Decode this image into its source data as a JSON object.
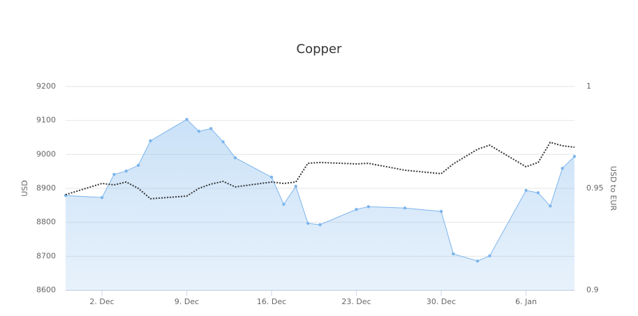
{
  "chart_data": {
    "type": "line",
    "title": "Copper",
    "y_label": "USD",
    "y2_label": "USD to EUR",
    "x": [
      "--11-29",
      "--12-02",
      "--12-03",
      "--12-04",
      "--12-05",
      "--12-06",
      "--12-09",
      "--12-10",
      "--12-11",
      "--12-12",
      "--12-13",
      "--12-16",
      "--12-17",
      "--12-18",
      "--12-19",
      "--12-20",
      "--12-23",
      "--12-24",
      "--12-27",
      "--12-30",
      "--12-31",
      "--01-02",
      "--01-03",
      "--01-06",
      "--01-07",
      "--01-08",
      "--01-09",
      "--01-10"
    ],
    "xlim": [
      "--11-29",
      "--01-10"
    ],
    "xticks": [
      {
        "value": "--12-02",
        "label": "2. Dec"
      },
      {
        "value": "--12-09",
        "label": "9. Dec"
      },
      {
        "value": "--12-16",
        "label": "16. Dec"
      },
      {
        "value": "--12-23",
        "label": "23. Dec"
      },
      {
        "value": "--12-30",
        "label": "30. Dec"
      },
      {
        "value": "--01-06",
        "label": "6. Jan"
      }
    ],
    "ylim": [
      8600,
      9200
    ],
    "yticks": [
      8600,
      8700,
      8800,
      8900,
      9000,
      9100,
      9200
    ],
    "y2lim": [
      0.9,
      1
    ],
    "y2ticks": [
      0.9,
      0.95,
      1
    ],
    "grid": true,
    "series": [
      {
        "type": "area",
        "color": "#7cb5ec",
        "values": [
          8879,
          8873,
          8941,
          8951,
          8968,
          9040,
          9103,
          9068,
          9076,
          9037,
          8990,
          8933,
          8853,
          8906,
          8797,
          8793,
          8838,
          8846,
          8842,
          8832,
          8707,
          8686,
          8701,
          8894,
          8887,
          8848,
          8959,
          8994
        ]
      },
      {
        "type": "line",
        "color": "#333333",
        "dash": "dotted",
        "axis": "y2",
        "values": [
          0.9469,
          0.9524,
          0.9517,
          0.9531,
          0.95,
          0.9449,
          0.9462,
          0.95,
          0.9521,
          0.9534,
          0.9507,
          0.9531,
          0.9524,
          0.9531,
          0.9623,
          0.9627,
          0.962,
          0.9623,
          0.9589,
          0.9572,
          0.962,
          0.9692,
          0.9712,
          0.9606,
          0.9627,
          0.9726,
          0.9709,
          0.9702
        ]
      }
    ]
  }
}
